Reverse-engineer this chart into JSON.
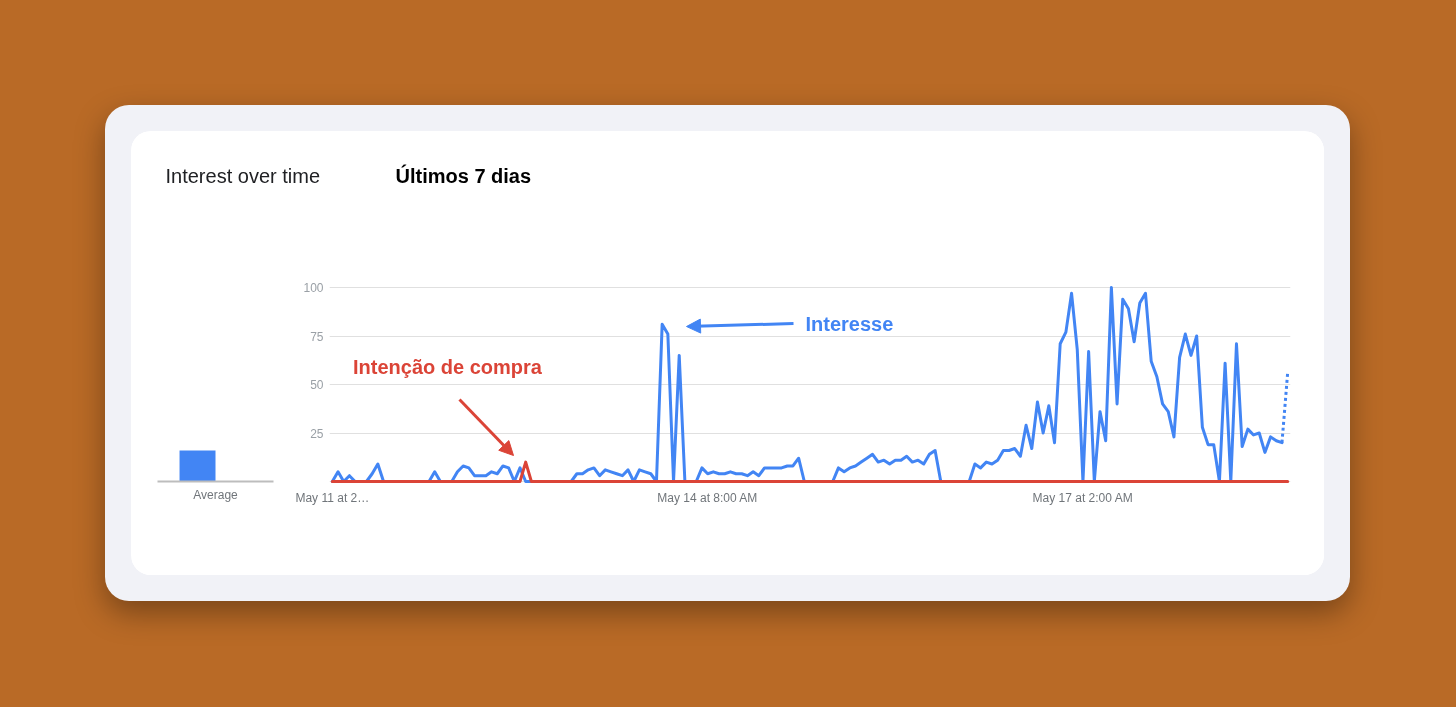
{
  "chart_data": [
    {
      "type": "bar",
      "title": "Interest over time",
      "categories": [
        "Average"
      ],
      "series": [
        {
          "color": "#4285f4",
          "values": [
            16
          ]
        },
        {
          "color": "#db4437",
          "values": [
            0
          ]
        }
      ],
      "ylim": [
        0,
        100
      ],
      "tick_labels": "x"
    },
    {
      "type": "line",
      "subtitle": "Últimos 7 dias",
      "categories": [
        "May 11 at 2…",
        null,
        null,
        null,
        null,
        null,
        null,
        null,
        null,
        null,
        null,
        null,
        null,
        null,
        null,
        null,
        null,
        null,
        null,
        null,
        null,
        null,
        null,
        null,
        null,
        null,
        null,
        null,
        null,
        null,
        null,
        null,
        null,
        null,
        null,
        null,
        null,
        null,
        null,
        null,
        null,
        null,
        null,
        null,
        null,
        null,
        null,
        null,
        null,
        null,
        null,
        null,
        null,
        null,
        null,
        null,
        null,
        null,
        null,
        null,
        null,
        null,
        null,
        null,
        null,
        null,
        "May 14 at 8:00 AM",
        null,
        null,
        null,
        null,
        null,
        null,
        null,
        null,
        null,
        null,
        null,
        null,
        null,
        null,
        null,
        null,
        null,
        null,
        null,
        null,
        null,
        null,
        null,
        null,
        null,
        null,
        null,
        null,
        null,
        null,
        null,
        null,
        null,
        null,
        null,
        null,
        null,
        null,
        null,
        null,
        null,
        null,
        null,
        null,
        null,
        null,
        null,
        null,
        null,
        null,
        null,
        null,
        null,
        null,
        null,
        null,
        null,
        null,
        null,
        null,
        null,
        null,
        null,
        null,
        null,
        "May 17 at 2:00 AM",
        null,
        null,
        null,
        null,
        null,
        null,
        null,
        null,
        null,
        null,
        null,
        null,
        null,
        null,
        null,
        null,
        null,
        null,
        null,
        null,
        null,
        null,
        null,
        null,
        null,
        null,
        null,
        null,
        null,
        null,
        null,
        null,
        null,
        null,
        null,
        null
      ],
      "ylim": [
        0,
        100
      ],
      "yticks": [
        {
          "value": 0,
          "label": null
        },
        25,
        50,
        75,
        100
      ],
      "grid": "y",
      "series": [
        {
          "color": "#4285f4",
          "values": [
            0,
            5,
            0,
            3,
            0,
            0,
            0,
            4,
            9,
            0,
            0,
            0,
            0,
            0,
            0,
            0,
            0,
            0,
            5,
            0,
            0,
            0,
            5,
            8,
            7,
            3,
            3,
            3,
            5,
            4,
            8,
            7,
            0,
            7,
            0,
            0,
            0,
            0,
            0,
            0,
            0,
            0,
            0,
            4,
            4,
            6,
            7,
            3,
            6,
            5,
            4,
            3,
            6,
            0,
            6,
            5,
            4,
            0,
            81,
            76,
            0,
            65,
            0,
            0,
            0,
            7,
            4,
            5,
            4,
            4,
            5,
            4,
            4,
            3,
            5,
            3,
            7,
            7,
            7,
            7,
            8,
            8,
            12,
            0,
            0,
            0,
            0,
            0,
            0,
            7,
            5,
            7,
            8,
            10,
            12,
            14,
            10,
            11,
            9,
            11,
            11,
            13,
            10,
            11,
            9,
            14,
            16,
            0,
            0,
            0,
            0,
            0,
            0,
            9,
            7,
            10,
            9,
            11,
            16,
            16,
            17,
            13,
            29,
            17,
            41,
            25,
            39,
            20,
            71,
            77,
            97,
            68,
            0,
            67,
            0,
            36,
            21,
            100,
            40,
            94,
            89,
            72,
            92,
            97,
            62,
            54,
            40,
            36,
            23,
            64,
            76,
            65,
            75,
            28,
            19,
            19,
            0,
            61,
            0,
            71,
            18,
            27,
            24,
            25,
            15,
            23,
            21,
            20,
            null
          ]
        },
        {
          "color": "#db4437",
          "values": [
            0,
            0,
            0,
            0,
            0,
            0,
            0,
            0,
            0,
            0,
            0,
            0,
            0,
            0,
            0,
            0,
            0,
            0,
            0,
            0,
            0,
            0,
            0,
            0,
            0,
            0,
            0,
            0,
            0,
            0,
            0,
            0,
            0,
            0,
            10,
            0,
            0,
            0,
            0,
            0,
            0,
            0,
            0,
            0,
            0,
            0,
            0,
            0,
            0,
            0,
            0,
            0,
            0,
            0,
            0,
            0,
            0,
            0,
            0,
            0,
            0,
            0,
            0,
            0,
            0,
            0,
            0,
            0,
            0,
            0,
            0,
            0,
            0,
            0,
            0,
            0,
            0,
            0,
            0,
            0,
            0,
            0,
            0,
            0,
            0,
            0,
            0,
            0,
            0,
            0,
            0,
            0,
            0,
            0,
            0,
            0,
            0,
            0,
            0,
            0,
            0,
            0,
            0,
            0,
            0,
            0,
            0,
            0,
            0,
            0,
            0,
            0,
            0,
            0,
            0,
            0,
            0,
            0,
            0,
            0,
            0,
            0,
            0,
            0,
            0,
            0,
            0,
            0,
            0,
            0,
            0,
            0,
            0,
            0,
            0,
            0,
            0,
            0,
            0,
            0,
            0,
            0,
            0,
            0,
            0,
            0,
            0,
            0,
            0,
            0,
            0,
            0,
            0,
            0,
            0,
            0,
            0,
            0,
            0,
            0,
            0,
            0,
            0,
            0,
            0,
            0,
            0,
            0,
            0
          ]
        },
        {
          "color": "#4285f4",
          "line_style": "dotted",
          "values": [
            null,
            null,
            null,
            null,
            null,
            null,
            null,
            null,
            null,
            null,
            null,
            null,
            null,
            null,
            null,
            null,
            null,
            null,
            null,
            null,
            null,
            null,
            null,
            null,
            null,
            null,
            null,
            null,
            null,
            null,
            null,
            null,
            null,
            null,
            null,
            null,
            null,
            null,
            null,
            null,
            null,
            null,
            null,
            null,
            null,
            null,
            null,
            null,
            null,
            null,
            null,
            null,
            null,
            null,
            null,
            null,
            null,
            null,
            null,
            null,
            null,
            null,
            null,
            null,
            null,
            null,
            null,
            null,
            null,
            null,
            null,
            null,
            null,
            null,
            null,
            null,
            null,
            null,
            null,
            null,
            null,
            null,
            null,
            null,
            null,
            null,
            null,
            null,
            null,
            null,
            null,
            null,
            null,
            null,
            null,
            null,
            null,
            null,
            null,
            null,
            null,
            null,
            null,
            null,
            null,
            null,
            null,
            null,
            null,
            null,
            null,
            null,
            null,
            null,
            null,
            null,
            null,
            null,
            null,
            null,
            null,
            null,
            null,
            null,
            null,
            null,
            null,
            null,
            null,
            null,
            null,
            null,
            null,
            null,
            null,
            null,
            null,
            null,
            null,
            null,
            null,
            null,
            null,
            null,
            null,
            null,
            null,
            null,
            null,
            null,
            null,
            null,
            null,
            null,
            null,
            null,
            null,
            null,
            null,
            null,
            null,
            null,
            null,
            null,
            null,
            null,
            null,
            20,
            56
          ]
        }
      ],
      "annotations": [
        "Interesse",
        "Intenção de compra"
      ]
    }
  ]
}
